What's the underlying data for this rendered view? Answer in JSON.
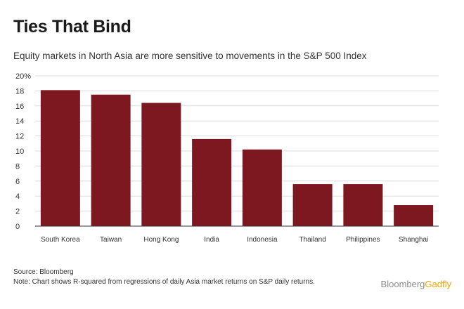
{
  "header": {
    "title": "Ties That Bind",
    "subtitle": "Equity markets in North Asia are more sensitive to movements in the S&P 500 Index"
  },
  "footer": {
    "source": "Source: Bloomberg",
    "note": "Note: Chart shows R-squared from regressions of daily Asia market returns on S&P daily returns.",
    "brand_part1": "Bloomberg",
    "brand_part2": "Gadfly"
  },
  "colors": {
    "bar": "#7d1820",
    "grid": "#dcdcdc",
    "axis": "#333333",
    "brand_gold": "#f0a400"
  },
  "chart_data": {
    "type": "bar",
    "title": "Ties That Bind",
    "subtitle": "Equity markets in North Asia are more sensitive to movements in the S&P 500 Index",
    "xlabel": "",
    "ylabel": "",
    "categories": [
      "South Korea",
      "Taiwan",
      "Hong Kong",
      "India",
      "Indonesia",
      "Thailand",
      "Philippines",
      "Shanghai"
    ],
    "values": [
      18.1,
      17.5,
      16.4,
      11.6,
      10.2,
      5.6,
      5.6,
      2.8
    ],
    "ylim": [
      0,
      20
    ],
    "yticks": [
      0,
      2,
      4,
      6,
      8,
      10,
      12,
      14,
      16,
      18,
      20
    ],
    "ytick_labels": [
      "0",
      "2",
      "4",
      "6",
      "8",
      "10",
      "12",
      "14",
      "16",
      "18",
      "20%"
    ],
    "grid": true,
    "legend": "none"
  }
}
